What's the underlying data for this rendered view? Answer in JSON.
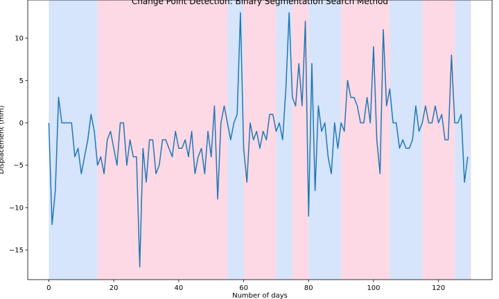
{
  "chart_data": {
    "type": "line",
    "title": "Change Point Detection: Binary Segmentation Search Method",
    "xlabel": "Number of days",
    "ylabel": "Displacement (mm)",
    "xlim": [
      -6.5,
      136.5
    ],
    "ylim": [
      -18.5,
      14.5
    ],
    "xticks": [
      0,
      20,
      40,
      60,
      80,
      100,
      120
    ],
    "yticks": [
      -15,
      -10,
      -5,
      0,
      5,
      10
    ],
    "grid": false,
    "regions": [
      {
        "start": 0,
        "end": 15,
        "color": "#d6e4fc"
      },
      {
        "start": 15,
        "end": 55,
        "color": "#fdd9e5"
      },
      {
        "start": 55,
        "end": 60,
        "color": "#d6e4fc"
      },
      {
        "start": 60,
        "end": 70,
        "color": "#fdd9e5"
      },
      {
        "start": 70,
        "end": 75,
        "color": "#d6e4fc"
      },
      {
        "start": 75,
        "end": 80,
        "color": "#fdd9e5"
      },
      {
        "start": 80,
        "end": 90,
        "color": "#d6e4fc"
      },
      {
        "start": 90,
        "end": 105,
        "color": "#fdd9e5"
      },
      {
        "start": 105,
        "end": 115,
        "color": "#d6e4fc"
      },
      {
        "start": 115,
        "end": 125,
        "color": "#fdd9e5"
      },
      {
        "start": 125,
        "end": 130,
        "color": "#d6e4fc"
      }
    ],
    "series": [
      {
        "color": "#1f77b4",
        "values": [
          0,
          -12,
          -8,
          3,
          0,
          0,
          0,
          0,
          -4,
          -3,
          -6,
          -4,
          -2,
          1,
          -1,
          -5,
          -4,
          -6,
          -2,
          -1,
          -3,
          -5,
          0,
          0,
          -5,
          -2,
          -4,
          -4,
          -17,
          -3,
          -7,
          -2,
          -2,
          -6,
          -5,
          -2,
          -2,
          -3,
          -4,
          -1,
          -3,
          -3,
          -2,
          -4,
          -1,
          -6,
          -4,
          -3,
          -6,
          -1,
          -4,
          2,
          -9,
          0,
          2,
          0,
          -2,
          0,
          1,
          13,
          -3,
          -7,
          0,
          -2,
          -1,
          -3,
          -1,
          -2,
          1,
          1,
          -1,
          0,
          -2,
          4,
          13,
          3,
          2,
          7,
          2,
          12,
          -11,
          7,
          -8,
          2,
          -1,
          0,
          -4,
          -6,
          0,
          -3,
          0,
          -1,
          5,
          3,
          3,
          2,
          0,
          0,
          3,
          0,
          9,
          -2,
          -6,
          11,
          2,
          4,
          0,
          0,
          -3,
          -2,
          -3,
          -3,
          -2,
          2,
          -1,
          0,
          2,
          0,
          0,
          2,
          0,
          1,
          -2,
          -2,
          8,
          0,
          0,
          1,
          -7,
          -4
        ]
      }
    ]
  }
}
